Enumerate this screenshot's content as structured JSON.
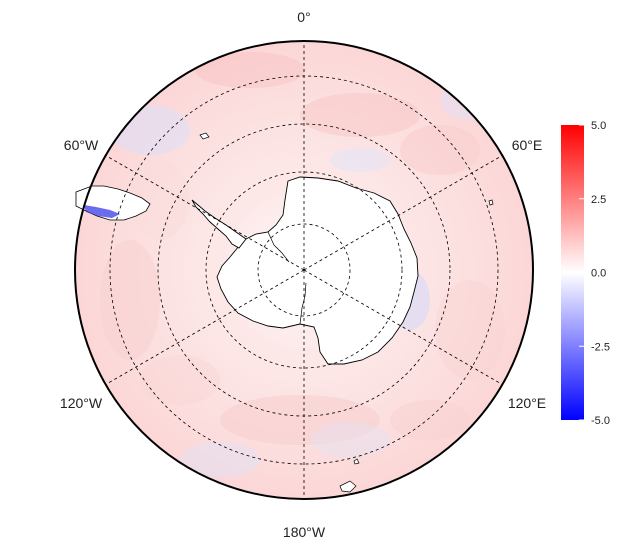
{
  "map": {
    "projection": "south-polar-stereographic",
    "longitude_labels": {
      "top": "0°",
      "upper_left": "60°W",
      "upper_right": "60°E",
      "lower_left": "120°W",
      "lower_right": "120°E",
      "bottom": "180°W"
    },
    "graticule_lines": "dashed",
    "coastline_color": "#000000"
  },
  "colorbar": {
    "ticks": [
      "5.0",
      "2.5",
      "0.0",
      "-2.5",
      "-5.0"
    ],
    "tick_values": [
      5.0,
      2.5,
      0.0,
      -2.5,
      -5.0
    ],
    "min": -5.0,
    "max": 5.0,
    "colors": {
      "low": "#0000ff",
      "mid": "#ffffff",
      "high": "#ff0000"
    }
  }
}
